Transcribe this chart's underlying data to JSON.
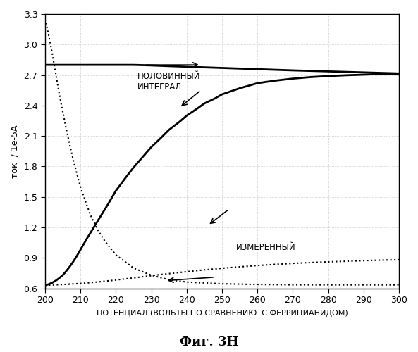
{
  "caption": "Фиг. 3Н",
  "ylabel": "ток  / 1е-5А",
  "xlabel": "ПОТЕНЦИАЛ (ВОЛЬТЫ ПО СРАВНЕНИЮ  С ФЕРРИЦИАНИДОМ)",
  "xlim": [
    200,
    300
  ],
  "ylim": [
    0.6,
    3.3
  ],
  "xticks": [
    200,
    210,
    220,
    230,
    240,
    250,
    260,
    270,
    280,
    290,
    300
  ],
  "yticks": [
    0.6,
    0.9,
    1.2,
    1.5,
    1.8,
    2.1,
    2.4,
    2.7,
    3.0,
    3.3
  ],
  "bg_color": "#ffffff",
  "grid_color": "#aaaaaa",
  "label_polovinny": "ПОЛОВИННЫЙ\nИНТЕГРАЛ",
  "label_izmeren": "ИЗМЕРЕННЫЙ",
  "x_halfintegral": [
    200,
    202,
    205,
    210,
    215,
    220,
    225,
    230,
    235,
    240,
    245,
    250,
    255,
    260,
    265,
    270,
    275,
    280,
    285,
    290,
    295,
    300
  ],
  "y_halfintegral": [
    2.8,
    2.8,
    2.8,
    2.8,
    2.8,
    2.8,
    2.8,
    2.795,
    2.788,
    2.782,
    2.776,
    2.77,
    2.764,
    2.758,
    2.752,
    2.746,
    2.741,
    2.736,
    2.731,
    2.726,
    2.721,
    2.716
  ],
  "x_scurve": [
    200,
    201,
    202,
    203,
    204,
    205,
    206,
    207,
    208,
    209,
    210,
    212,
    215,
    218,
    220,
    223,
    225,
    228,
    230,
    233,
    235,
    238,
    240,
    243,
    245,
    248,
    250,
    255,
    260,
    265,
    270,
    275,
    280,
    285,
    290,
    295,
    300
  ],
  "y_scurve": [
    0.63,
    0.64,
    0.655,
    0.675,
    0.7,
    0.73,
    0.77,
    0.815,
    0.865,
    0.92,
    0.98,
    1.1,
    1.27,
    1.44,
    1.56,
    1.7,
    1.79,
    1.91,
    1.99,
    2.09,
    2.16,
    2.24,
    2.3,
    2.37,
    2.42,
    2.47,
    2.51,
    2.57,
    2.62,
    2.645,
    2.665,
    2.68,
    2.69,
    2.698,
    2.704,
    2.71,
    2.714
  ],
  "x_dashed_dec": [
    200,
    201,
    202,
    203,
    204,
    205,
    206,
    207,
    208,
    209,
    210,
    211,
    212,
    213,
    214,
    215,
    217,
    220,
    225,
    230,
    235,
    240,
    250,
    260,
    270,
    280,
    290,
    300
  ],
  "y_dashed_dec": [
    3.25,
    3.1,
    2.92,
    2.72,
    2.52,
    2.34,
    2.17,
    2.01,
    1.86,
    1.73,
    1.6,
    1.5,
    1.4,
    1.31,
    1.24,
    1.17,
    1.06,
    0.93,
    0.8,
    0.73,
    0.685,
    0.662,
    0.645,
    0.638,
    0.635,
    0.634,
    0.634,
    0.634
  ],
  "x_dashed_inc": [
    200,
    202,
    205,
    210,
    215,
    220,
    225,
    230,
    235,
    240,
    245,
    250,
    255,
    260,
    265,
    270,
    275,
    280,
    285,
    290,
    295,
    300
  ],
  "y_dashed_inc": [
    0.63,
    0.633,
    0.638,
    0.648,
    0.663,
    0.682,
    0.703,
    0.725,
    0.745,
    0.764,
    0.782,
    0.798,
    0.812,
    0.825,
    0.836,
    0.846,
    0.854,
    0.861,
    0.867,
    0.873,
    0.878,
    0.882
  ]
}
